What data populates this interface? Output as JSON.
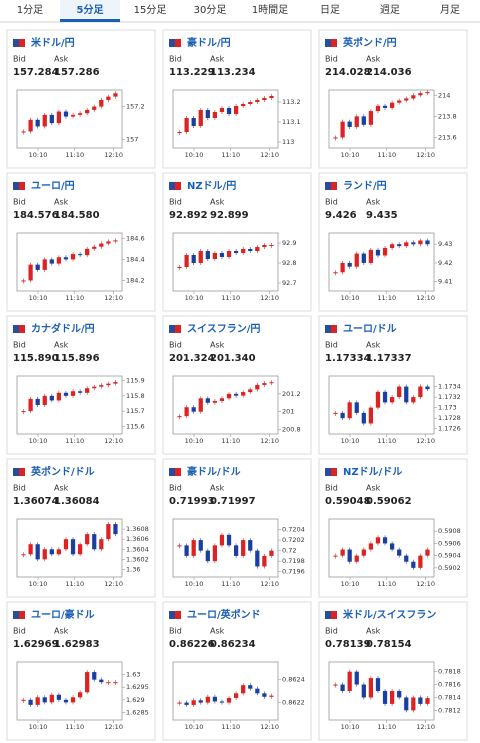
{
  "tabs": [
    "1分足",
    "5分足",
    "15分足",
    "30分足",
    "1時間足",
    "日足",
    "週足",
    "月足"
  ],
  "active_tab": 1,
  "cards": [
    {
      "title": "米ドル/円",
      "bid_label": "Bid",
      "ask_label": "Ask",
      "bid": "157.284",
      "ask": "157.286",
      "chart": {
        "type": "candlestick",
        "values": [
          157.05,
          157.12,
          157.08,
          157.15,
          157.1,
          157.17,
          157.14,
          157.15,
          157.16,
          157.18,
          157.2,
          157.24,
          157.26,
          157.28
        ],
        "ylim": [
          156.95,
          157.3
        ],
        "yticks": [
          157.2,
          157
        ],
        "xticks": [
          "10:10",
          "11:10",
          "12:10"
        ]
      }
    },
    {
      "title": "豪ドル/円",
      "bid_label": "Bid",
      "ask_label": "Ask",
      "bid": "113.229",
      "ask": "113.234",
      "chart": {
        "type": "candlestick",
        "values": [
          113.05,
          113.12,
          113.08,
          113.16,
          113.12,
          113.15,
          113.17,
          113.14,
          113.18,
          113.19,
          113.2,
          113.21,
          113.22,
          113.23
        ],
        "ylim": [
          112.97,
          113.26
        ],
        "yticks": [
          113.2,
          113.1,
          113
        ],
        "xticks": [
          "10:10",
          "11:10",
          "12:10"
        ]
      }
    },
    {
      "title": "英ポンド/円",
      "bid_label": "Bid",
      "ask_label": "Ask",
      "bid": "214.028",
      "ask": "214.036",
      "chart": {
        "type": "candlestick",
        "values": [
          213.6,
          213.75,
          213.7,
          213.8,
          213.72,
          213.85,
          213.9,
          213.88,
          213.93,
          213.95,
          213.97,
          214,
          214.02,
          214.03
        ],
        "ylim": [
          213.5,
          214.05
        ],
        "yticks": [
          214,
          213.8,
          213.6
        ],
        "xticks": [
          "10:10",
          "11:10",
          "12:10"
        ]
      }
    },
    {
      "title": "ユーロ/円",
      "bid_label": "Bid",
      "ask_label": "Ask",
      "bid": "184.576",
      "ask": "184.580",
      "chart": {
        "type": "candlestick",
        "values": [
          184.2,
          184.35,
          184.3,
          184.4,
          184.36,
          184.42,
          184.4,
          184.45,
          184.44,
          184.5,
          184.52,
          184.55,
          184.57,
          184.58
        ],
        "ylim": [
          184.1,
          184.65
        ],
        "yticks": [
          184.6,
          184.4,
          184.2
        ],
        "xticks": [
          "10:10",
          "11:10",
          "12:10"
        ]
      }
    },
    {
      "title": "NZドル/円",
      "bid_label": "Bid",
      "ask_label": "Ask",
      "bid": "92.892",
      "ask": "92.899",
      "chart": {
        "type": "candlestick",
        "values": [
          92.78,
          92.84,
          92.8,
          92.86,
          92.82,
          92.85,
          92.83,
          92.86,
          92.85,
          92.87,
          92.86,
          92.88,
          92.89,
          92.89
        ],
        "ylim": [
          92.66,
          92.95
        ],
        "yticks": [
          92.9,
          92.8,
          92.7
        ],
        "xticks": [
          "10:10",
          "11:10",
          "12:10"
        ]
      }
    },
    {
      "title": "ランド/円",
      "bid_label": "Bid",
      "ask_label": "Ask",
      "bid": "9.426",
      "ask": "9.435",
      "chart": {
        "type": "candlestick",
        "values": [
          9.415,
          9.42,
          9.418,
          9.425,
          9.42,
          9.427,
          9.424,
          9.428,
          9.43,
          9.429,
          9.431,
          9.43,
          9.432,
          9.43
        ],
        "ylim": [
          9.405,
          9.436
        ],
        "yticks": [
          9.43,
          9.42,
          9.41
        ],
        "xticks": [
          "10:10",
          "11:10",
          "12:10"
        ]
      }
    },
    {
      "title": "カナダドル/円",
      "bid_label": "Bid",
      "ask_label": "Ask",
      "bid": "115.890",
      "ask": "115.896",
      "chart": {
        "type": "candlestick",
        "values": [
          115.7,
          115.78,
          115.74,
          115.8,
          115.77,
          115.82,
          115.8,
          115.83,
          115.82,
          115.85,
          115.86,
          115.87,
          115.88,
          115.89
        ],
        "ylim": [
          115.55,
          115.93
        ],
        "yticks": [
          115.9,
          115.8,
          115.7,
          115.6
        ],
        "xticks": [
          "10:10",
          "11:10",
          "12:10"
        ]
      }
    },
    {
      "title": "スイスフラン/円",
      "bid_label": "Bid",
      "ask_label": "Ask",
      "bid": "201.324",
      "ask": "201.340",
      "chart": {
        "type": "candlestick",
        "values": [
          200.95,
          201.05,
          201,
          201.15,
          201.1,
          201.12,
          201.15,
          201.2,
          201.18,
          201.22,
          201.25,
          201.3,
          201.32,
          201.33
        ],
        "ylim": [
          200.75,
          201.4
        ],
        "yticks": [
          201.2,
          201,
          200.8
        ],
        "xticks": [
          "10:10",
          "11:10",
          "12:10"
        ]
      }
    },
    {
      "title": "ユーロ/ドル",
      "bid_label": "Bid",
      "ask_label": "Ask",
      "bid": "1.17334",
      "ask": "1.17337",
      "chart": {
        "type": "candlestick",
        "values": [
          1.1729,
          1.1728,
          1.1731,
          1.1729,
          1.1727,
          1.173,
          1.1733,
          1.1731,
          1.1732,
          1.1734,
          1.1731,
          1.1732,
          1.1734,
          1.17335
        ],
        "ylim": [
          1.1725,
          1.1736
        ],
        "yticks": [
          1.1734,
          1.1732,
          1.173,
          1.1728,
          1.1726
        ],
        "xticks": [
          "10:10",
          "11:10",
          "12:10"
        ]
      }
    },
    {
      "title": "英ポンド/ドル",
      "bid_label": "Bid",
      "ask_label": "Ask",
      "bid": "1.36074",
      "ask": "1.36084",
      "chart": {
        "type": "candlestick",
        "values": [
          1.3603,
          1.3605,
          1.3602,
          1.3604,
          1.3603,
          1.3604,
          1.3606,
          1.3603,
          1.3605,
          1.3607,
          1.3604,
          1.3606,
          1.3609,
          1.3607
        ],
        "ylim": [
          1.35985,
          1.361
        ],
        "yticks": [
          1.3608,
          1.3606,
          1.3604,
          1.3602,
          1.36
        ],
        "xticks": [
          "10:10",
          "11:10",
          "12:10"
        ]
      }
    },
    {
      "title": "豪ドル/ドル",
      "bid_label": "Bid",
      "ask_label": "Ask",
      "bid": "0.71993",
      "ask": "0.71997",
      "chart": {
        "type": "candlestick",
        "values": [
          0.7201,
          0.7199,
          0.7202,
          0.72,
          0.7198,
          0.7201,
          0.7203,
          0.7201,
          0.7199,
          0.7202,
          0.72,
          0.7197,
          0.7199,
          0.72
        ],
        "ylim": [
          0.7195,
          0.7206
        ],
        "yticks": [
          0.7204,
          0.7202,
          0.72,
          0.7198,
          0.7196
        ],
        "xticks": [
          "10:10",
          "11:10",
          "12:10"
        ]
      }
    },
    {
      "title": "NZドル/ドル",
      "bid_label": "Bid",
      "ask_label": "Ask",
      "bid": "0.59048",
      "ask": "0.59062",
      "chart": {
        "type": "candlestick",
        "values": [
          0.5904,
          0.5905,
          0.5903,
          0.5904,
          0.5905,
          0.5906,
          0.5907,
          0.5906,
          0.5905,
          0.5904,
          0.5903,
          0.5902,
          0.5904,
          0.5905
        ],
        "ylim": [
          0.59005,
          0.591
        ],
        "yticks": [
          0.5908,
          0.5906,
          0.5904,
          0.5902
        ],
        "xticks": [
          "10:10",
          "11:10",
          "12:10"
        ]
      }
    },
    {
      "title": "ユーロ/豪ドル",
      "bid_label": "Bid",
      "ask_label": "Ask",
      "bid": "1.62969",
      "ask": "1.62983",
      "chart": {
        "type": "candlestick",
        "values": [
          1.629,
          1.6288,
          1.6291,
          1.6289,
          1.6292,
          1.629,
          1.6289,
          1.6291,
          1.6293,
          1.6301,
          1.6298,
          1.6297,
          1.6297,
          1.6297
        ],
        "ylim": [
          1.6282,
          1.6305
        ],
        "yticks": [
          1.63,
          1.6295,
          1.629,
          1.6285
        ],
        "xticks": [
          "10:10",
          "11:10",
          "12:10"
        ]
      }
    },
    {
      "title": "ユーロ/英ポンド",
      "bid_label": "Bid",
      "ask_label": "Ask",
      "bid": "0.86226",
      "ask": "0.86234",
      "chart": {
        "type": "candlestick",
        "values": [
          0.8622,
          0.86218,
          0.86222,
          0.8622,
          0.86225,
          0.86221,
          0.8622,
          0.86224,
          0.86228,
          0.86235,
          0.86232,
          0.86228,
          0.86225,
          0.86226
        ],
        "ylim": [
          0.86205,
          0.86255
        ],
        "yticks": [
          0.8624,
          0.8622
        ],
        "xticks": [
          "10:10",
          "11:10",
          "12:10"
        ]
      }
    },
    {
      "title": "米ドル/スイスフラン",
      "bid_label": "Bid",
      "ask_label": "Ask",
      "bid": "0.78139",
      "ask": "0.78154",
      "chart": {
        "type": "candlestick",
        "values": [
          0.7816,
          0.7815,
          0.7818,
          0.7816,
          0.7814,
          0.7817,
          0.7815,
          0.7813,
          0.7815,
          0.7814,
          0.7812,
          0.7814,
          0.7813,
          0.78139
        ],
        "ylim": [
          0.78105,
          0.78195
        ],
        "yticks": [
          0.7818,
          0.7816,
          0.7814,
          0.7812
        ],
        "xticks": [
          "10:10",
          "11:10",
          "12:10"
        ]
      }
    }
  ]
}
